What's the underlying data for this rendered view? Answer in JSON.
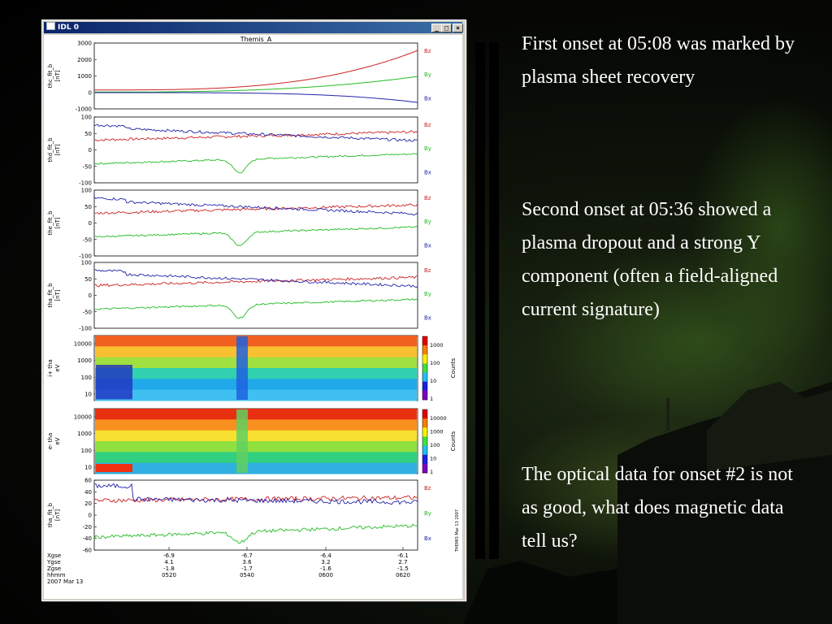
{
  "window": {
    "title": "IDL 0",
    "buttons": {
      "minimize": "_",
      "maximize": "□",
      "close": "×"
    }
  },
  "plot": {
    "title": "Themis_A",
    "colors": {
      "Bz": "#cc2222",
      "By": "#22bb22",
      "Bx": "#2222aa"
    },
    "panels": [
      {
        "ylabel": "thc_fit_b",
        "unit": "[nT]",
        "ticks": [
          "3000",
          "2000",
          "1000",
          "0",
          "-1000"
        ],
        "legend": [
          "Bz",
          "By",
          "Bx"
        ]
      },
      {
        "ylabel": "thd_fit_b",
        "unit": "[nT]",
        "ticks": [
          "100",
          "50",
          "0",
          "-50",
          "-100"
        ],
        "legend": [
          "Bz",
          "By",
          "Bx"
        ]
      },
      {
        "ylabel": "the_fit_b",
        "unit": "[nT]",
        "ticks": [
          "100",
          "50",
          "0",
          "-50",
          "-100"
        ],
        "legend": [
          "Bz",
          "By",
          "Bx"
        ]
      },
      {
        "ylabel": "tha_fit_b",
        "unit": "[nT]",
        "ticks": [
          "100",
          "50",
          "0",
          "-50",
          "-100"
        ],
        "legend": [
          "Bz",
          "By",
          "Bx"
        ]
      },
      {
        "ylabel": "i+ tha",
        "unit": "eV",
        "ticks": [
          "10000",
          "1000",
          "100",
          "10"
        ],
        "cb_ticks": [
          "1000",
          "100",
          "10",
          "1"
        ],
        "cb_label": "Counts"
      },
      {
        "ylabel": "e- tha",
        "unit": "eV",
        "ticks": [
          "10000",
          "1000",
          "100",
          "10"
        ],
        "cb_ticks": [
          "10000",
          "1000",
          "100",
          "10",
          "1"
        ],
        "cb_label": "Counts"
      },
      {
        "ylabel": "tha_fit_b",
        "unit": "[nT]",
        "ticks": [
          "60",
          "40",
          "20",
          "0",
          "-20",
          "-40",
          "-60"
        ],
        "legend": [
          "Bz",
          "By",
          "Bx"
        ]
      }
    ],
    "xaxis": {
      "row_labels": [
        "Xgse",
        "Ygse",
        "Zgse",
        "hhmm",
        "2007 Mar 13"
      ],
      "ticks": [
        {
          "xgse": "-6.9",
          "ygse": "4.1",
          "zgse": "-1.8",
          "hhmm": "0520"
        },
        {
          "xgse": "-6.7",
          "ygse": "3.6",
          "zgse": "-1.7",
          "hhmm": "0540"
        },
        {
          "xgse": "-6.4",
          "ygse": "3.2",
          "zgse": "-1.6",
          "hhmm": "0600"
        },
        {
          "xgse": "-6.1",
          "ygse": "2.7",
          "zgse": "-1.5",
          "hhmm": "0620"
        }
      ]
    },
    "side_stamp": "THEMIS Mar 13 2007"
  },
  "slide": {
    "paragraphs": [
      "First onset at 05:08 was marked by plasma sheet recovery",
      "Second onset at 05:36 showed a plasma dropout and a strong Y component (often a field-aligned current signature)",
      "The optical data for onset #2 is not as good, what does magnetic data tell us?"
    ]
  }
}
